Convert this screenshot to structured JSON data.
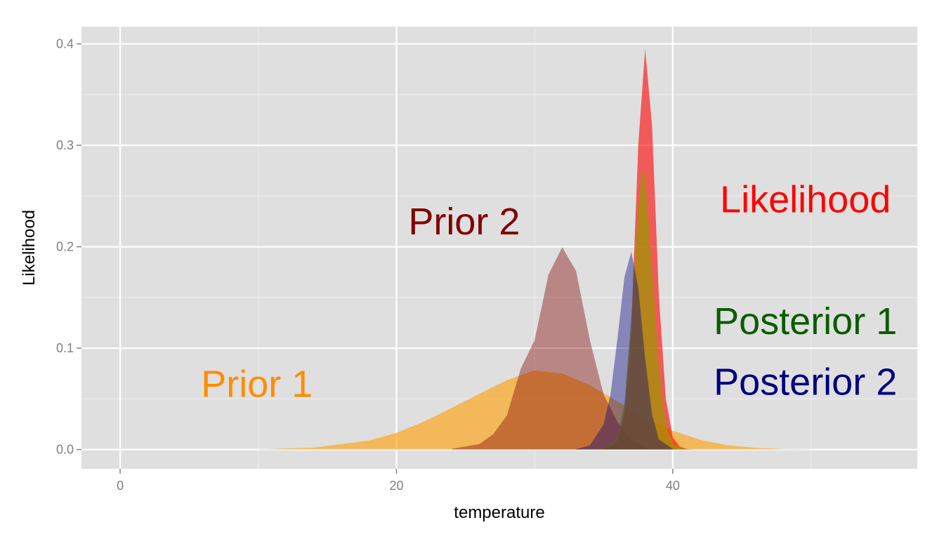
{
  "chart_data": {
    "type": "area",
    "xlabel": "temperature",
    "ylabel": "Likelihood",
    "xlim": [
      -2.8,
      57.7
    ],
    "ylim": [
      -0.019,
      0.417
    ],
    "x_ticks": [
      0,
      20,
      40
    ],
    "x_tick_labels": [
      "0",
      "20",
      "40"
    ],
    "y_ticks": [
      0.0,
      0.1,
      0.2,
      0.3,
      0.4
    ],
    "y_tick_labels": [
      "0.0",
      "0.1",
      "0.2",
      "0.3",
      "0.4"
    ],
    "grid": true,
    "panel_background": "#dfdfdf",
    "series": [
      {
        "name": "Prior 1",
        "color": "#ff9f00",
        "opacity": 0.6,
        "x": [
          10,
          14,
          18,
          20,
          22,
          24,
          26,
          28,
          30,
          32,
          34,
          36,
          38,
          40,
          42,
          44,
          46,
          48,
          50
        ],
        "y": [
          0.0002,
          0.0018,
          0.0088,
          0.0165,
          0.0275,
          0.041,
          0.055,
          0.0685,
          0.078,
          0.075,
          0.0635,
          0.0475,
          0.0315,
          0.0185,
          0.0095,
          0.0042,
          0.0016,
          0.0005,
          0.0001
        ]
      },
      {
        "name": "Prior 2",
        "color": "#800000",
        "opacity": 0.4,
        "x": [
          24,
          26,
          27,
          28,
          29,
          30,
          31,
          32,
          33,
          34,
          35,
          36,
          37,
          38,
          40
        ],
        "y": [
          0.0007,
          0.0054,
          0.015,
          0.0338,
          0.0799,
          0.1079,
          0.1724,
          0.1995,
          0.176,
          0.108,
          0.054,
          0.027,
          0.009,
          0.002,
          0.0001
        ]
      },
      {
        "name": "Likelihood",
        "color": "#ff0000",
        "opacity": 0.6,
        "x": [
          35,
          36,
          36.5,
          37,
          37.5,
          38,
          38.5,
          39,
          39.5,
          40,
          40.5,
          41,
          41.5
        ],
        "y": [
          0.0005,
          0.008,
          0.035,
          0.12,
          0.3,
          0.395,
          0.32,
          0.15,
          0.05,
          0.012,
          0.003,
          0.0005,
          0.0001
        ]
      },
      {
        "name": "Posterior 1",
        "color": "#999900",
        "opacity": 0.7,
        "x": [
          35,
          36,
          36.5,
          37,
          37.5,
          37.8,
          38,
          38.5,
          39,
          39.5,
          40,
          41
        ],
        "y": [
          0.001,
          0.012,
          0.045,
          0.13,
          0.24,
          0.276,
          0.27,
          0.18,
          0.08,
          0.025,
          0.005,
          0.0001
        ]
      },
      {
        "name": "Posterior 2",
        "color": "#000080",
        "opacity": 0.4,
        "x": [
          33,
          34,
          35,
          35.5,
          36,
          36.5,
          37,
          37.5,
          38,
          38.5,
          39,
          40
        ],
        "y": [
          0.0005,
          0.004,
          0.025,
          0.055,
          0.11,
          0.17,
          0.195,
          0.16,
          0.09,
          0.035,
          0.01,
          0.0005
        ]
      }
    ],
    "annotations": [
      {
        "text": "Prior 1",
        "x": 9.9,
        "y": 0.052,
        "color": "#ff8c00"
      },
      {
        "text": "Prior 2",
        "x": 24.9,
        "y": 0.212,
        "color": "#800000"
      },
      {
        "text": "Likelihood",
        "x": 49.6,
        "y": 0.234,
        "color": "#ff0000"
      },
      {
        "text": "Posterior 1",
        "x": 49.6,
        "y": 0.114,
        "color": "#0a5c00"
      },
      {
        "text": "Posterior 2",
        "x": 49.6,
        "y": 0.054,
        "color": "#000080"
      }
    ]
  }
}
